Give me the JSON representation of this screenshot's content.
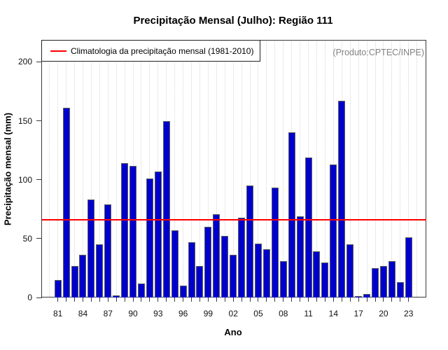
{
  "title": "Precipitação Mensal (Julho): Região 111",
  "watermark": "(Produto:CPTEC/INPE)",
  "legend": {
    "label": "Climatologia da precipitação mensal (1981-2010)",
    "line_color": "#ff0000"
  },
  "chart_data": {
    "type": "bar",
    "title": "Precipitação Mensal (Julho): Região 111",
    "xlabel": "Ano",
    "ylabel": "Precipitação mensal (mm)",
    "ylim": [
      0,
      218
    ],
    "yticks": [
      0,
      50,
      100,
      150,
      200
    ],
    "grid": "vertical-dotted",
    "grid_years": {
      "start": 1980,
      "end": 2024
    },
    "legend_position": "top-left",
    "x_label_every": 3,
    "categories": [
      1981,
      1982,
      1983,
      1984,
      1985,
      1986,
      1987,
      1988,
      1989,
      1990,
      1991,
      1992,
      1993,
      1994,
      1995,
      1996,
      1997,
      1998,
      1999,
      2000,
      2001,
      2002,
      2003,
      2004,
      2005,
      2006,
      2007,
      2008,
      2009,
      2010,
      2011,
      2012,
      2013,
      2014,
      2015,
      2016,
      2017,
      2018,
      2019,
      2020,
      2021,
      2022,
      2023
    ],
    "x_tick_labels": [
      "81",
      "",
      "",
      "84",
      "",
      "",
      "87",
      "",
      "",
      "90",
      "",
      "",
      "93",
      "",
      "",
      "96",
      "",
      "",
      "99",
      "",
      "",
      "02",
      "",
      "",
      "05",
      "",
      "",
      "08",
      "",
      "",
      "11",
      "",
      "",
      "14",
      "",
      "",
      "17",
      "",
      "",
      "20",
      "",
      "",
      "23"
    ],
    "values": [
      15,
      161,
      27,
      36,
      83,
      45,
      79,
      2,
      114,
      112,
      12,
      101,
      107,
      150,
      57,
      10,
      47,
      27,
      60,
      71,
      52,
      36,
      68,
      95,
      46,
      41,
      93,
      31,
      140,
      69,
      119,
      39,
      30,
      113,
      167,
      45,
      1,
      3,
      25,
      27,
      31,
      13,
      51
    ],
    "climatology_value": 66,
    "bar_color": "#0000CD",
    "bar_border_color": "#5e5e5e",
    "line_color": "#ff0000"
  }
}
